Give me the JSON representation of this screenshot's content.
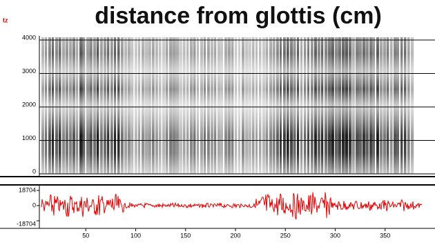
{
  "header": {
    "unit_fragment": "tz",
    "title": "distance from glottis (cm)"
  },
  "spectrogram": {
    "ylim": [
      0,
      4000
    ],
    "yticks": [
      0,
      1000,
      2000,
      3000,
      4000
    ]
  },
  "waveform": {
    "ylim": [
      -18704,
      18704
    ],
    "yticks": [
      18704,
      0,
      -18704
    ]
  },
  "x_axis": {
    "xlim": [
      0,
      400
    ],
    "xticks": [
      50,
      100,
      150,
      200,
      250,
      300,
      350
    ]
  }
}
